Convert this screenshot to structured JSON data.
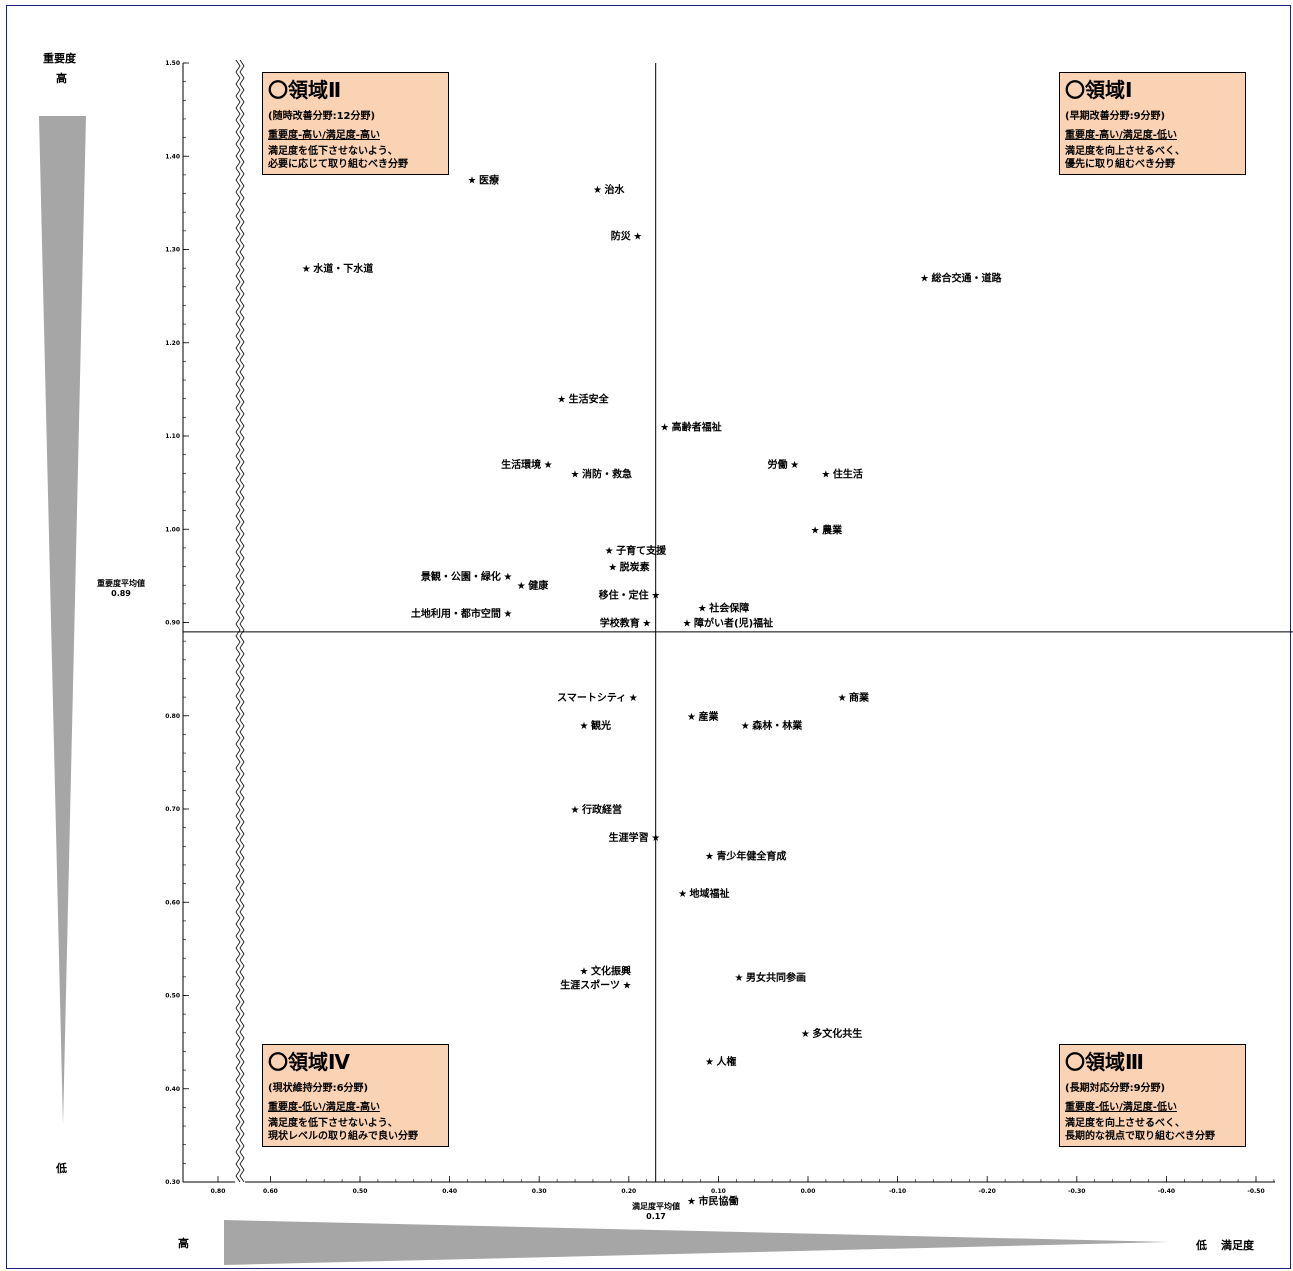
{
  "left_scale": {
    "high": "高",
    "low": "低",
    "title": "重要度"
  },
  "bottom_scale": {
    "high": "高",
    "low": "低",
    "title": "満足度"
  },
  "quadrants": [
    {
      "id": "q2",
      "title": "〇領域Ⅱ",
      "sub": "(随時改善分野:12分野)",
      "cond": "重要度-高い/満足度-高い",
      "desc1": "満足度を低下させないよう、",
      "desc2": "必要に応じて取り組むべき分野"
    },
    {
      "id": "q1",
      "title": "〇領域Ⅰ",
      "sub": "(早期改善分野:9分野)",
      "cond": "重要度-高い/満足度-低い",
      "desc1": "満足度を向上させるべく、",
      "desc2": "優先に取り組むべき分野"
    },
    {
      "id": "q4",
      "title": "〇領域Ⅳ",
      "sub": "(現状維持分野:6分野)",
      "cond": "重要度-低い/満足度-高い",
      "desc1": "満足度を低下させないよう、",
      "desc2": "現状レベルの取り組みで良い分野"
    },
    {
      "id": "q3",
      "title": "〇領域Ⅲ",
      "sub": "(長期対応分野:9分野)",
      "cond": "重要度-低い/満足度-低い",
      "desc1": "満足度を向上させるべく、",
      "desc2": "長期的な視点で取り組むべき分野"
    }
  ],
  "chart_data": {
    "type": "scatter",
    "x_title": "満足度平均値",
    "y_title": "重要度平均値",
    "x_avg": 0.17,
    "x_avg_text": "0.17",
    "y_avg": 0.89,
    "y_avg_text": "0.89",
    "xlim": [
      0.6,
      -0.6
    ],
    "ylim": [
      0.3,
      1.5
    ],
    "x_axis_break": true,
    "x_ticks": [
      "0.80",
      "0.60",
      "0.50",
      "0.40",
      "0.30",
      "0.20",
      "0.10",
      "0.00",
      "-0.10",
      "-0.20",
      "-0.30",
      "-0.40",
      "-0.50"
    ],
    "y_ticks": [
      "1.50",
      "1.40",
      "1.30",
      "1.20",
      "1.10",
      "1.00",
      "0.90",
      "0.80",
      "0.70",
      "0.60",
      "0.50",
      "0.40",
      "0.30"
    ],
    "points": [
      {
        "label": "医療",
        "x": 0.375,
        "y": 1.375,
        "side": "right"
      },
      {
        "label": "治水",
        "x": 0.235,
        "y": 1.365,
        "side": "right"
      },
      {
        "label": "防災",
        "x": 0.19,
        "y": 1.315,
        "side": "left"
      },
      {
        "label": "水道・下水道",
        "x": 0.56,
        "y": 1.28,
        "side": "right"
      },
      {
        "label": "総合交通・道路",
        "x": -0.13,
        "y": 1.27,
        "side": "right"
      },
      {
        "label": "生活安全",
        "x": 0.275,
        "y": 1.14,
        "side": "right"
      },
      {
        "label": "高齢者福祉",
        "x": 0.16,
        "y": 1.11,
        "side": "right"
      },
      {
        "label": "生活環境",
        "x": 0.29,
        "y": 1.07,
        "side": "left"
      },
      {
        "label": "消防・救急",
        "x": 0.26,
        "y": 1.06,
        "side": "right"
      },
      {
        "label": "労働",
        "x": 0.015,
        "y": 1.07,
        "side": "left"
      },
      {
        "label": "住生活",
        "x": -0.02,
        "y": 1.06,
        "side": "right"
      },
      {
        "label": "農業",
        "x": -0.008,
        "y": 1.0,
        "side": "right"
      },
      {
        "label": "子育て支援",
        "x": 0.222,
        "y": 0.978,
        "side": "right"
      },
      {
        "label": "脱炭素",
        "x": 0.218,
        "y": 0.96,
        "side": "right"
      },
      {
        "label": "景観・公園・緑化",
        "x": 0.335,
        "y": 0.95,
        "side": "left"
      },
      {
        "label": "健康",
        "x": 0.32,
        "y": 0.94,
        "side": "right"
      },
      {
        "label": "移住・定住",
        "x": 0.17,
        "y": 0.93,
        "side": "left"
      },
      {
        "label": "社会保障",
        "x": 0.118,
        "y": 0.916,
        "side": "right"
      },
      {
        "label": "土地利用・都市空間",
        "x": 0.335,
        "y": 0.91,
        "side": "left"
      },
      {
        "label": "学校教育",
        "x": 0.18,
        "y": 0.9,
        "side": "left"
      },
      {
        "label": "障がい者(児)福祉",
        "x": 0.135,
        "y": 0.9,
        "side": "right"
      },
      {
        "label": "スマートシティ",
        "x": 0.195,
        "y": 0.82,
        "side": "left"
      },
      {
        "label": "商業",
        "x": -0.038,
        "y": 0.82,
        "side": "right"
      },
      {
        "label": "産業",
        "x": 0.13,
        "y": 0.8,
        "side": "right"
      },
      {
        "label": "観光",
        "x": 0.25,
        "y": 0.79,
        "side": "right"
      },
      {
        "label": "森林・林業",
        "x": 0.07,
        "y": 0.79,
        "side": "right"
      },
      {
        "label": "行政経営",
        "x": 0.26,
        "y": 0.7,
        "side": "right"
      },
      {
        "label": "生涯学習",
        "x": 0.17,
        "y": 0.67,
        "side": "left"
      },
      {
        "label": "青少年健全育成",
        "x": 0.11,
        "y": 0.65,
        "side": "right"
      },
      {
        "label": "地域福祉",
        "x": 0.14,
        "y": 0.61,
        "side": "right"
      },
      {
        "label": "文化振興",
        "x": 0.25,
        "y": 0.527,
        "side": "right"
      },
      {
        "label": "生涯スポーツ",
        "x": 0.202,
        "y": 0.512,
        "side": "left"
      },
      {
        "label": "男女共同参画",
        "x": 0.077,
        "y": 0.52,
        "side": "right"
      },
      {
        "label": "多文化共生",
        "x": 0.003,
        "y": 0.46,
        "side": "right"
      },
      {
        "label": "人権",
        "x": 0.11,
        "y": 0.43,
        "side": "right"
      },
      {
        "label": "市民協働",
        "x": 0.13,
        "y": 0.28,
        "side": "right"
      }
    ]
  }
}
